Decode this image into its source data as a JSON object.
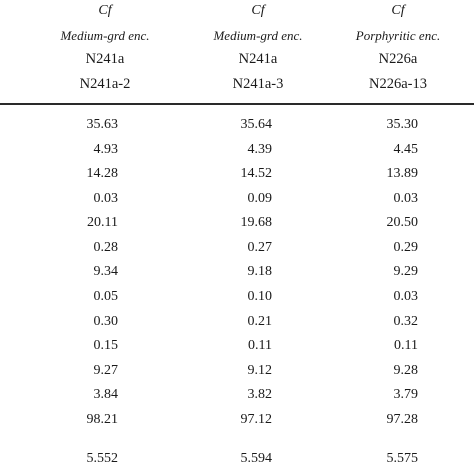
{
  "columns": [
    {
      "type": "Cf",
      "enclave": "Medium-grd enc.",
      "id": "N241a",
      "sample": "N241a-2",
      "values": [
        "35.63",
        "4.93",
        "14.28",
        "0.03",
        "20.11",
        "0.28",
        "9.34",
        "0.05",
        "0.30",
        "0.15",
        "9.27",
        "3.84",
        "98.21",
        "5.552"
      ]
    },
    {
      "type": "Cf",
      "enclave": "Medium-grd enc.",
      "id": "N241a",
      "sample": "N241a-3",
      "values": [
        "35.64",
        "4.39",
        "14.52",
        "0.09",
        "19.68",
        "0.27",
        "9.18",
        "0.10",
        "0.21",
        "0.11",
        "9.12",
        "3.82",
        "97.12",
        "5.594"
      ]
    },
    {
      "type": "Cf",
      "enclave": "Porphyritic enc.",
      "id": "N226a",
      "sample": "N226a-13",
      "values": [
        "35.30",
        "4.45",
        "13.89",
        "0.03",
        "20.50",
        "0.29",
        "9.29",
        "0.03",
        "0.32",
        "0.11",
        "9.28",
        "3.79",
        "97.28",
        "5.575"
      ]
    }
  ]
}
